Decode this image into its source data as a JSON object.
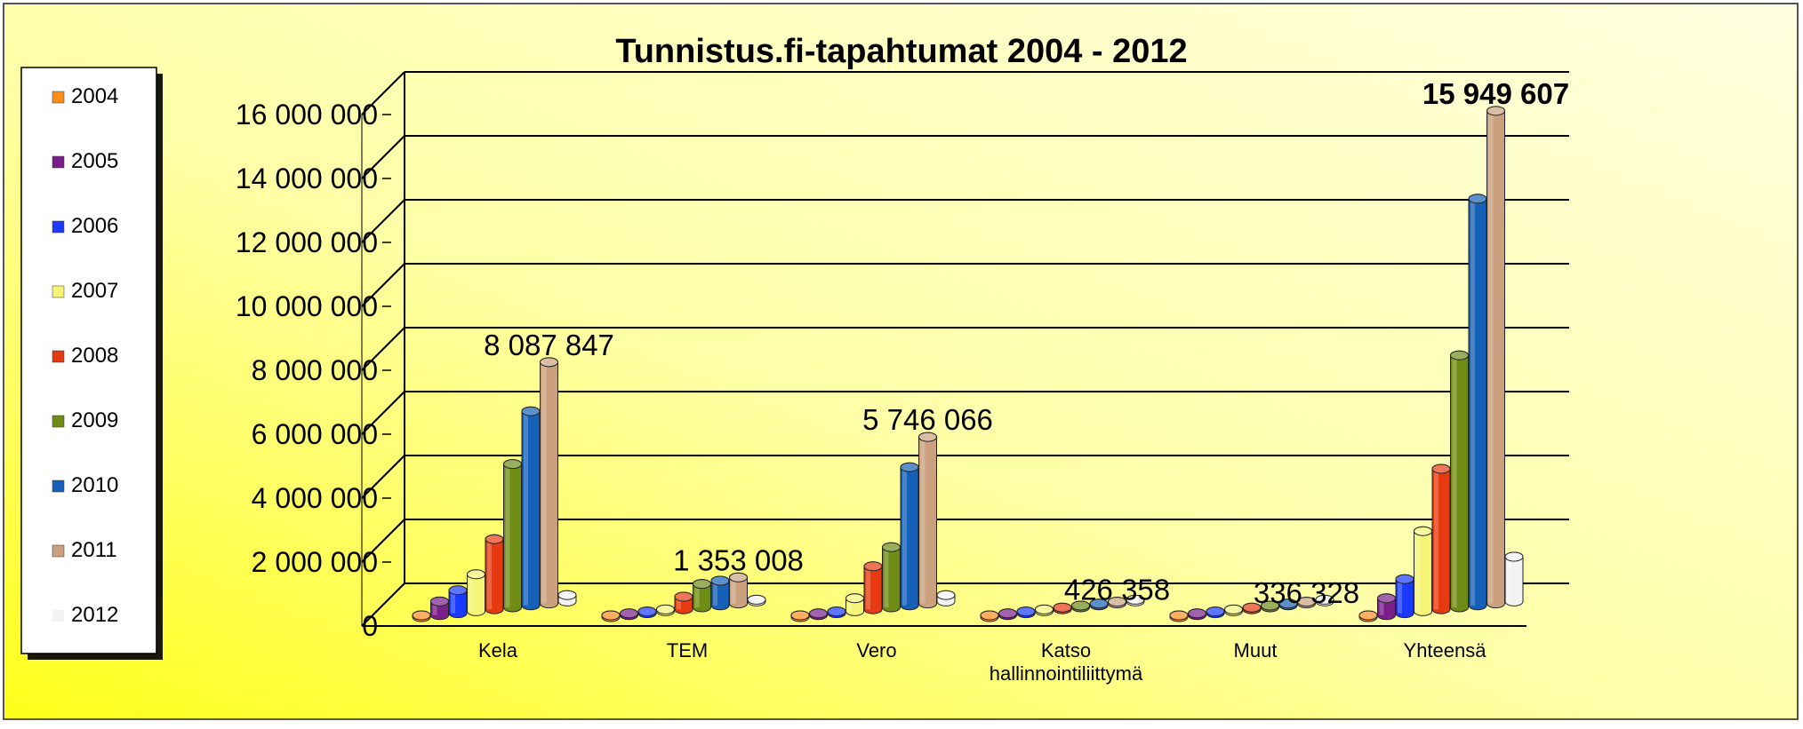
{
  "chart_data": {
    "type": "bar",
    "title": "Tunnistus.fi-tapahtumat 2004 - 2012",
    "xlabel": "",
    "ylabel": "",
    "ylim": [
      0,
      16000000
    ],
    "yticks": [
      0,
      2000000,
      4000000,
      6000000,
      8000000,
      10000000,
      12000000,
      14000000,
      16000000
    ],
    "ytick_labels": [
      "0",
      "2 000 000",
      "4 000 000",
      "6 000 000",
      "8 000 000",
      "10 000 000",
      "12 000 000",
      "14 000 000",
      "16 000 000"
    ],
    "grid": true,
    "legend_position": "left",
    "categories": [
      "Kela",
      "TEM",
      "Vero",
      "Katso\nhallinnointiliittymä",
      "Muut",
      "Yhteensä"
    ],
    "series": [
      {
        "name": "2004",
        "color": "#ff8c1a",
        "values": [
          20000,
          20000,
          20000,
          10000,
          10000,
          50000
        ]
      },
      {
        "name": "2005",
        "color": "#7a1f8a",
        "values": [
          600000,
          80000,
          80000,
          30000,
          20000,
          700000
        ]
      },
      {
        "name": "2006",
        "color": "#1a3aff",
        "values": [
          950000,
          120000,
          150000,
          40000,
          30000,
          1300000
        ]
      },
      {
        "name": "2007",
        "color": "#f5f575",
        "values": [
          1450000,
          150000,
          700000,
          60000,
          40000,
          2800000
        ]
      },
      {
        "name": "2008",
        "color": "#e83a10",
        "values": [
          2550000,
          750000,
          1700000,
          220000,
          80000,
          4750000
        ]
      },
      {
        "name": "2009",
        "color": "#6f8c14",
        "values": [
          4900000,
          1150000,
          2300000,
          260000,
          120000,
          8300000
        ]
      },
      {
        "name": "2010",
        "color": "#1560b8",
        "values": [
          6550000,
          1250000,
          4800000,
          426358,
          150000,
          13200000
        ]
      },
      {
        "name": "2011",
        "color": "#caa07e",
        "values": [
          8087847,
          1353008,
          5746066,
          426358,
          336328,
          15949607
        ]
      },
      {
        "name": "2012",
        "color": "#f2f2f2",
        "values": [
          800000,
          200000,
          800000,
          100000,
          100000,
          2000000
        ]
      }
    ],
    "data_labels": [
      {
        "category": "Kela",
        "text": "8 087 847"
      },
      {
        "category": "TEM",
        "text": "1 353 008"
      },
      {
        "category": "Vero",
        "text": "5 746 066"
      },
      {
        "category": "Katso\nhallinnointiliittymä",
        "text": "426 358"
      },
      {
        "category": "Muut",
        "text": "336 328"
      },
      {
        "category": "Yhteensä",
        "text": "15 949 607"
      }
    ]
  }
}
